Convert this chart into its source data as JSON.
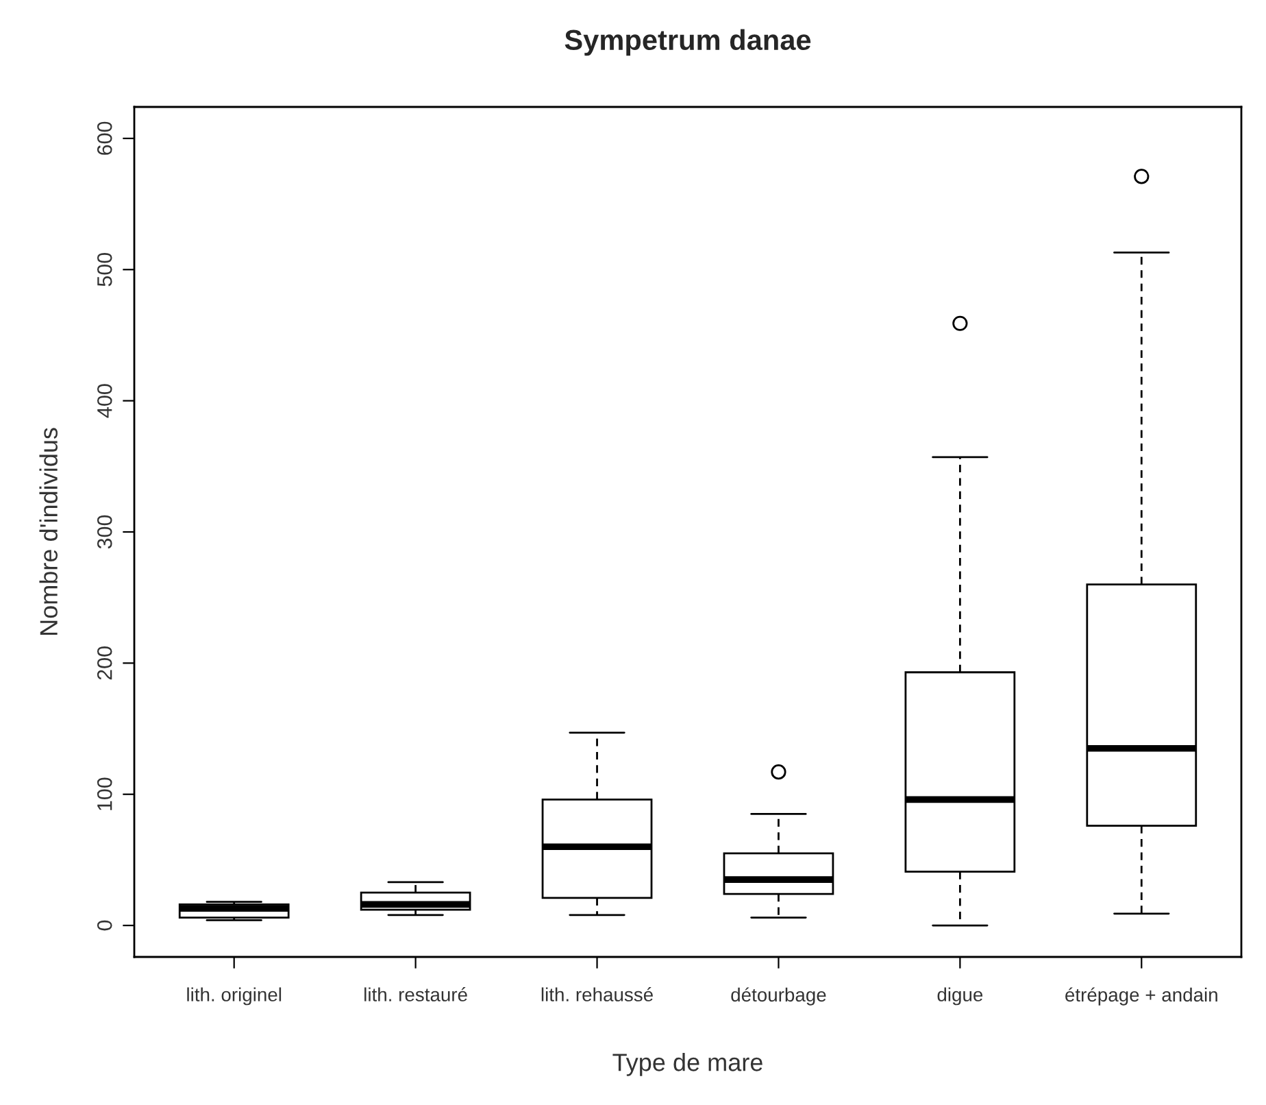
{
  "chart_data": {
    "type": "box",
    "title": "Sympetrum danae",
    "xlabel": "Type de mare",
    "ylabel": "Nombre d'individus",
    "categories": [
      "lith. originel",
      "lith. restauré",
      "lith. rehaussé",
      "détourbage",
      "digue",
      "étrépage + andain"
    ],
    "boxes": [
      {
        "low": 4,
        "q1": 6,
        "median": 13,
        "q3": 16,
        "high": 18
      },
      {
        "low": 8,
        "q1": 12,
        "median": 16,
        "q3": 25,
        "high": 33
      },
      {
        "low": 8,
        "q1": 21,
        "median": 60,
        "q3": 96,
        "high": 147
      },
      {
        "low": 6,
        "q1": 24,
        "median": 35,
        "q3": 55,
        "high": 85,
        "outliers": [
          117
        ]
      },
      {
        "low": 0,
        "q1": 41,
        "median": 96,
        "q3": 193,
        "high": 357,
        "outliers": [
          459
        ]
      },
      {
        "low": 9,
        "q1": 76,
        "median": 135,
        "q3": 260,
        "high": 513,
        "outliers": [
          571
        ]
      }
    ],
    "color": "#ffffff",
    "ylim": [
      -24,
      624
    ],
    "yticks": [
      0,
      100,
      200,
      300,
      400,
      500,
      600
    ],
    "grid": false
  }
}
